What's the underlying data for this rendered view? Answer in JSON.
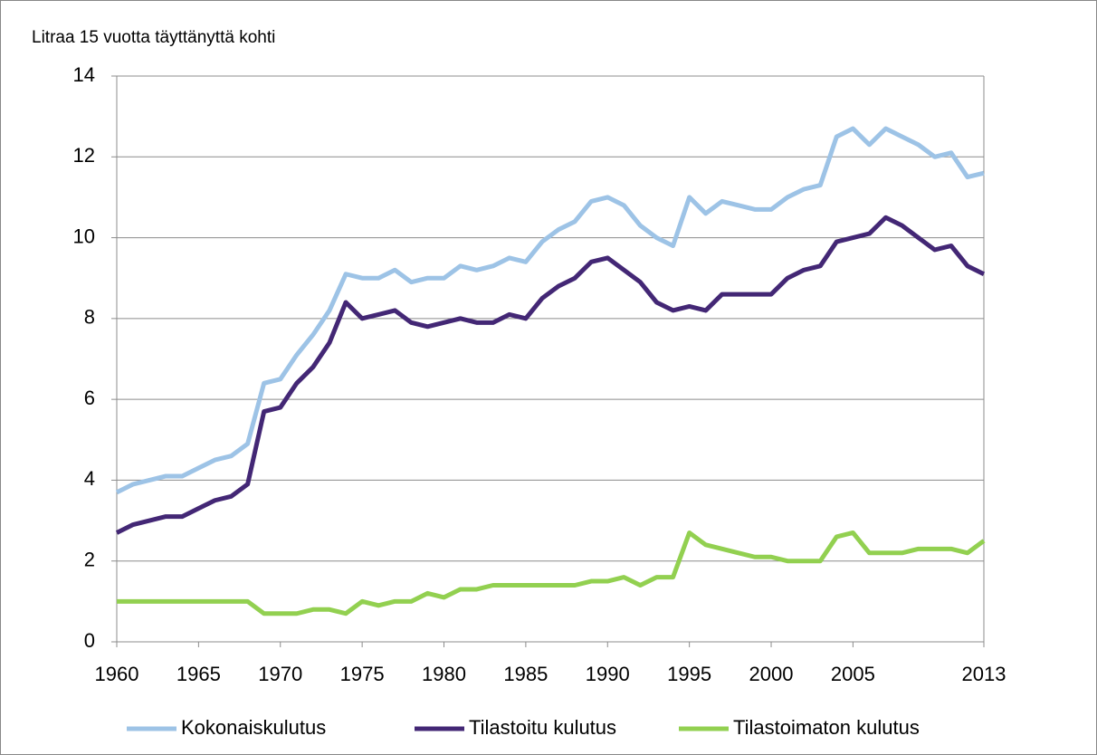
{
  "chart_data": {
    "type": "line",
    "title": "Litraa 15 vuotta täyttänyttä kohti",
    "x": [
      1960,
      1961,
      1962,
      1963,
      1964,
      1965,
      1966,
      1967,
      1968,
      1969,
      1970,
      1971,
      1972,
      1973,
      1974,
      1975,
      1976,
      1977,
      1978,
      1979,
      1980,
      1981,
      1982,
      1983,
      1984,
      1985,
      1986,
      1987,
      1988,
      1989,
      1990,
      1991,
      1992,
      1993,
      1994,
      1995,
      1996,
      1997,
      1998,
      1999,
      2000,
      2001,
      2002,
      2003,
      2004,
      2005,
      2006,
      2007,
      2008,
      2009,
      2010,
      2011,
      2012,
      2013
    ],
    "series": [
      {
        "name": "Kokonaiskulutus",
        "color": "#9dc3e6",
        "values": [
          3.7,
          3.9,
          4.0,
          4.1,
          4.1,
          4.3,
          4.5,
          4.6,
          4.9,
          6.4,
          6.5,
          7.1,
          7.6,
          8.2,
          9.1,
          9.0,
          9.0,
          9.2,
          8.9,
          9.0,
          9.0,
          9.3,
          9.2,
          9.3,
          9.5,
          9.4,
          9.9,
          10.2,
          10.4,
          10.9,
          11.0,
          10.8,
          10.3,
          10.0,
          9.8,
          11.0,
          10.6,
          10.9,
          10.8,
          10.7,
          10.7,
          11.0,
          11.2,
          11.3,
          12.5,
          12.7,
          12.3,
          12.7,
          12.5,
          12.3,
          12.0,
          12.1,
          11.5,
          11.6
        ]
      },
      {
        "name": "Tilastoitu kulutus",
        "color": "#432775",
        "values": [
          2.7,
          2.9,
          3.0,
          3.1,
          3.1,
          3.3,
          3.5,
          3.6,
          3.9,
          5.7,
          5.8,
          6.4,
          6.8,
          7.4,
          8.4,
          8.0,
          8.1,
          8.2,
          7.9,
          7.8,
          7.9,
          8.0,
          7.9,
          7.9,
          8.1,
          8.0,
          8.5,
          8.8,
          9.0,
          9.4,
          9.5,
          9.2,
          8.9,
          8.4,
          8.2,
          8.3,
          8.2,
          8.6,
          8.6,
          8.6,
          8.6,
          9.0,
          9.2,
          9.3,
          9.9,
          10.0,
          10.1,
          10.5,
          10.3,
          10.0,
          9.7,
          9.8,
          9.3,
          9.1
        ]
      },
      {
        "name": "Tilastoimaton kulutus",
        "color": "#92d050",
        "values": [
          1.0,
          1.0,
          1.0,
          1.0,
          1.0,
          1.0,
          1.0,
          1.0,
          1.0,
          0.7,
          0.7,
          0.7,
          0.8,
          0.8,
          0.7,
          1.0,
          0.9,
          1.0,
          1.0,
          1.2,
          1.1,
          1.3,
          1.3,
          1.4,
          1.4,
          1.4,
          1.4,
          1.4,
          1.4,
          1.5,
          1.5,
          1.6,
          1.4,
          1.6,
          1.6,
          2.7,
          2.4,
          2.3,
          2.2,
          2.1,
          2.1,
          2.0,
          2.0,
          2.0,
          2.6,
          2.7,
          2.2,
          2.2,
          2.2,
          2.3,
          2.3,
          2.3,
          2.2,
          2.5
        ]
      }
    ],
    "xlim": [
      1960,
      2013
    ],
    "xticks": [
      1960,
      1965,
      1970,
      1975,
      1980,
      1985,
      1990,
      1995,
      2000,
      2005,
      2013
    ],
    "ylim": [
      0,
      14
    ],
    "yticks": [
      0,
      2,
      4,
      6,
      8,
      10,
      12,
      14
    ],
    "grid": true,
    "legend": "bottom"
  }
}
